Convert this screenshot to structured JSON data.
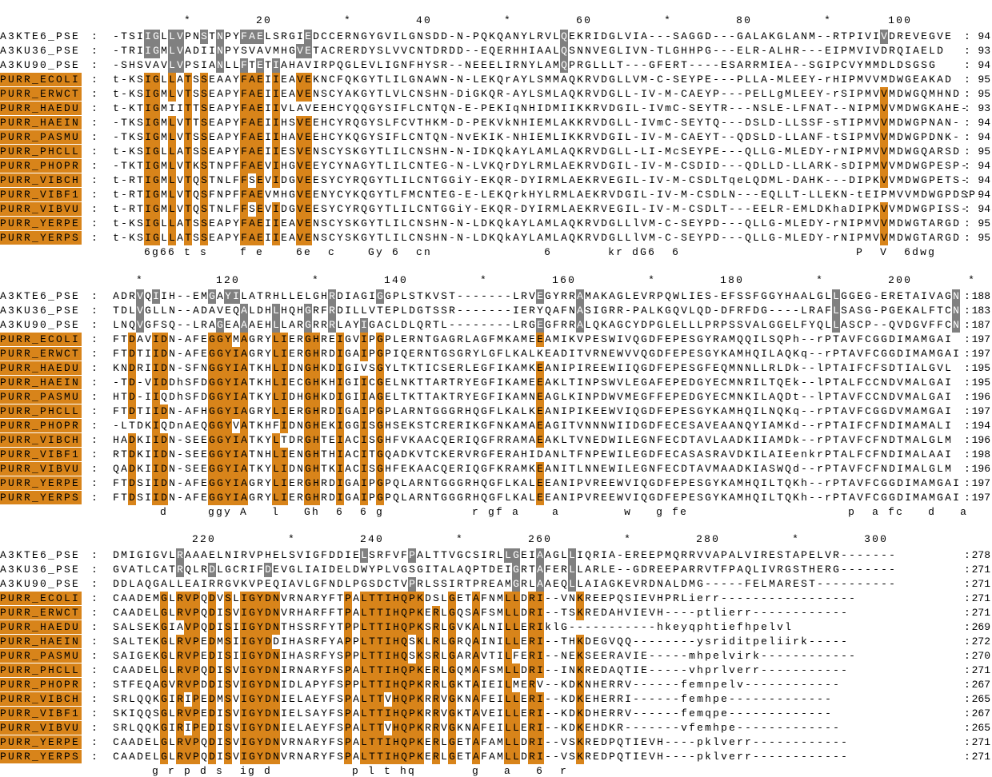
{
  "blocks": [
    {
      "ruler": "         *        20         *        40         *        60         *        80         *       100",
      "rows": [
        {
          "name": "A3KTE6_PSE",
          "seq": "-TSIIGLLVPNSTNPYFAELSRGIEDCCERNGYGVILGNSDD-N-PQKQANYLRVLQEKRIDGLVIA---SAGGD---GALAKGLANM--RTPIVIVDREVEGVE",
          "end": "94"
        },
        {
          "name": "A3KU36_PSE",
          "seq": "-TRIIGMLVADIINPYSVAVMHGVETACRERDYSLVVCNTDRDD--EQERHHIAALQSNNVEGLIVN-TLGHHPG---ELR-ALHR---EIPMVIVDRQIAELD",
          "end": "93"
        },
        {
          "name": "A3KU90_PSE",
          "seq": "-SHSVAVLVPSIANLLFTETIAHAVIRPQGLEVLIGNFHYSR--NEEELIRNYLAMQPRGLLLT---GFERT----ESARRMIEA--SGIPCVYMMDLDSGSG",
          "end": "94"
        },
        {
          "name": "PURR_ECOLI",
          "seq": "t-KSIGLLATSSEAAYFAEIIEAVEKNCFQKGYTLILGNAWN-N-LEKQrAYLSMMAQKRVDGLLVM-C-SEYPE---PLLA-MLEEY-rHIPMVVMDWGEAKAD",
          "end": "95"
        },
        {
          "name": "PURR_ERWCT",
          "seq": "t-KSIGMLVTSSEAPYFAEIIEAVENSCYAKGYTLVLCNSHN-DiGKQR-AYLSMLAQKRVDGLL-IV-M-CAEYP---PELLgMLEEY-rSIPMVVMDWGQMHND",
          "end": "95"
        },
        {
          "name": "PURR_HAEDU",
          "seq": "t-KTIGMIITTSEAPYFAEIIVLAVEEHCYQQGYSIFLCNTQN-E-PEKIqNHIDMIIKKRVDGIL-IVmC-SEYTR---NSLE-LFNAT--NIPMVVMDWGKAHE-",
          "end": "93"
        },
        {
          "name": "PURR_HAEIN",
          "seq": "-TKSIGMLVTTSEAPYFAEIIHSVEEHCYRQGYSLFCVTHKM-D-PEKVkNHIEMLAKKRVDGLL-IVmC-SEYTQ---DSLD-LLSSF-sTIPMVVMDWGPNAN-",
          "end": "94"
        },
        {
          "name": "PURR_PASMU",
          "seq": "-TKSIGMLVTSSEAPYFAEIIHAVEEHCYKQGYSIFLCNTQN-NvEKIK-NHIEMLIKKRVDGIL-IV-M-CAEYT--QDSLD-LLANF-tSIPMVVMDWGPDNK-",
          "end": "94"
        },
        {
          "name": "PURR_PHCLL",
          "seq": "t-KSIGLLATSSEAPYFAEIIESVENSCYSKGYTLILCNSHN-N-IDKQkAYLAMLAQKRVDGLL-LI-McSEYPE---QLLG-MLEDY-rNIPMVVMDWGQARSD",
          "end": "95"
        },
        {
          "name": "PURR_PHOPR",
          "seq": "-TKTIGMLVTKSTNPFFAEVIHGVEEYCYNAGYTLILCNTEG-N-LVKQrDYLRMLAEKRVDGIL-IV-M-CSDID---QDLLD-LLARK-sDIPMVVMDWGPESP-",
          "end": "94"
        },
        {
          "name": "PURR_VIBCH",
          "seq": "t-RTIGMLVTQSTNLFFSEVIDGVEESYCYRQGYTLILCNTGGiY-EKQR-DYIRMLAEKRVEGIL-IV-M-CSDLTqeLQDML-DAHK---DIPKVVMDWGPETS-",
          "end": "94"
        },
        {
          "name": "PURR_VIBF1",
          "seq": "t-RTIGMLVTQSFNPFFAEVMHGVEENYCYKQGYTLFMCNTEG-E-LEKQrkHYLRMLAEKRVDGIL-IV-M-CSDLN---EQLLT-LLEKN-tEIPMVVMDWGPDSP-",
          "end": "94"
        },
        {
          "name": "PURR_VIBVU",
          "seq": "t-RTIGMLVTQSTNLFFSEVIDGVEESYCYRQGYTLILCNTGGiY-EKQR-DYIRMLAEKRVEGIL-IV-M-CSDLT---EELR-EMLDKhaDIPKVVMDWGPISS-",
          "end": "94"
        },
        {
          "name": "PURR_YERPE",
          "seq": "t-KSIGLLATSSEAPYFAEIIEAVENSCYSKGYTLILCNSHN-N-LDKQkAYLAMLAQKRVDGLLlVM-C-SEYPD---QLLG-MLEDY-rNIPMVVMDWGTARGD",
          "end": "95"
        },
        {
          "name": "PURR_YERPS",
          "seq": "t-KSIGLLATSSEAPYFAEIIEAVENSCYSKGYTLILCNSHN-N-LDKQkAYLAMLAQKRVDGLLlVM-C-SEYPD---QLLG-MLEDY-rNIPMVVMDWGTARGD",
          "end": "95"
        }
      ],
      "consensus": "    6g66 t s    f e    6e  c    Gy 6  cn              6       kr dG6  6                      P  V  6dwg"
    },
    {
      "ruler": "   *         120         *        140         *        160         *        180         *        200       *",
      "rows": [
        {
          "name": "A3KTE6_PSE",
          "seq": "ADRVQIIH--EMGAYILATRHLLELGHRDIAGIGGPLSTKVST-------LRVEGYRRAMAKAGLEVRPQWLIES-EFSSFGGYHAALGLLGGEG-ERETAIVAGN",
          "end": "188"
        },
        {
          "name": "A3KU36_PSE",
          "seq": "TDLVGLLN--ADAVEQALDHLHQHGRFRDILLVTEPLDGTSSR-------IERYQAFNASIGRR-PALKGQVLQD-DFRFDG----LRAFLSASG-PGEKALFTCN",
          "end": "183"
        },
        {
          "name": "A3KU90_PSE",
          "seq": "LNQVGFSQ--LRAGEAAAEHLLARGRRRLAYIGACLDLQRTL--------LRGEGFRRALQKAGCYDPGLELLLPRPSSVALGGELFYQLLASCP--QVDGVFFCN",
          "end": "187"
        },
        {
          "name": "PURR_ECOLI",
          "seq": "FTDAVIDN-AFEGGYMAGRYLIERGHREIGVIPGPLERNTGAGRLAGFMKAMEEAMIKVPESWIVQGDFEPESGYRAMQQILSQPh--rPTAVFCGGDIMAMGAI",
          "end": "197"
        },
        {
          "name": "PURR_ERWCT",
          "seq": "FTDTIIDN-AFEGGYIAGRYLIERGHRDIGAIPGPIQERNTGSGRYLGFLKALKEADITVRNEWVVQGDFEPESGYKAMHQILAQKq--rPTAVFCGGDIMAMGAI",
          "end": "197"
        },
        {
          "name": "PURR_HAEDU",
          "seq": "KNDRIIDN-SFNGGYIATKHLIDNGHKDIGIVSGYLTKTICSERLEGFIKAMKEANIPIREEWIIQGDFEPESGFEQMNNLLRLDk--lPTAIFCFSDTIALGVL",
          "end": "195"
        },
        {
          "name": "PURR_HAEIN",
          "seq": "-TD-VIDDhSFDGGYIATKHLIECGHKHIGIICGELNKTTARTRYEGFIKAMEEAKLTINPSWVLEGAFEPEDGYECMNRILTQEk--lPTALFCCNDVMALGAI",
          "end": "195"
        },
        {
          "name": "PURR_PASMU",
          "seq": "HTD-IIQDhSFDGGYIATKYLIDHGHKDIGIIAGELTKTTAKTRYEGFIKAMNEAGLKINPDWVMEGFFEPEDGYECMNKILAQDt--lPTAVFCCNDVMALGAI",
          "end": "196"
        },
        {
          "name": "PURR_PHCLL",
          "seq": "FTDTIIDN-AFHGGYIAGRYLIERGHRDIGAIPGPLARNTGGGRHQGFLKALKEANIPIKEEWVIQGDFEPESGYKAMHQILNQKq--rPTAVFCGGDVMAMGAI",
          "end": "197"
        },
        {
          "name": "PURR_PHOPR",
          "seq": "-LTDKIQDnAEQGGYVATKHFIDNGHEKIGGISGHSEKSTCRERIKGFNKAMAEAGITVNNNWIIDGDFECESAVEAANQYIAMKd--rPTAIFCFNDIMAMALI",
          "end": "194"
        },
        {
          "name": "PURR_VIBCH",
          "seq": "HADKIIDN-SEEGGYIATKYLTDRGHTEIACISGHFVKAACQERIQGFRRAMAEAKLTVNEDWILEGNFECDTAVLAADKIIAMDk--rPTAVFCFNDTMALGLM",
          "end": "196"
        },
        {
          "name": "PURR_VIBF1",
          "seq": "RTDKIIDN-SEEGGYIATNHLIENGHTHIACITGQADKVTCKERVRGFERAHIDANLTFNPEWILEGDFECASASRAVDKILAIEenkrPTALFCFNDIMALAAI",
          "end": "198"
        },
        {
          "name": "PURR_VIBVU",
          "seq": "QADKIIDN-SEEGGYIATKYLIDNGHTKIACISGHFEKAACQERIQGFKRAMKEANITLNNEWILEGNFECDTAVMAADKIASWQd--rPTAVFCFNDIMALGLM",
          "end": "196"
        },
        {
          "name": "PURR_YERPE",
          "seq": "FTDSIIDN-AFEGGYIAGRYLIERGHRDIGAIPGPQLARNTGGGRHQGFLKALEEANIPVREEWVIQGDFEPESGYKAMHQILTQKh--rPTAVFCGGDIMAMGAI",
          "end": "197"
        },
        {
          "name": "PURR_YERPS",
          "seq": "FTDSIIDN-AFEGGYIAGRYLIERGHRDIGAIPGPQLARNTGGGRHQGFLKALEEANIPVREEWVIQGDFEPESGYKAMHQILTQKh--rPTAVFCGGDIMAMGAI",
          "end": "197"
        }
      ],
      "consensus": "      d     ggy A   l   Gh  6  6 g           r gf a    a        w   g fe                    p  a fc   d   a"
    },
    {
      "ruler": "          220         *        240         *        260         *        280         *        300",
      "rows": [
        {
          "name": "A3KTE6_PSE",
          "seq": "DMIGIGVLRAAAELNIRVPHELSVIGFDDIELSRFVFPALTTVGCSIRLLGEIAAGLLIQRIA-EREEPMQRRVVAPALVIRESTAPELVR-------",
          "end": "278"
        },
        {
          "name": "A3KU36_PSE",
          "seq": "GVATLCATRQLRDLGCRIFDEVGLIAIDELDWYPLVGSGITALAQPTDEIGRTAFERLLARLE--GDREEPARRVTFPAQLIVRGSTHERG-------",
          "end": "271"
        },
        {
          "name": "A3KU90_PSE",
          "seq": "DDLAQGALLEAIRRGVKVPEQIAVLGFNDLPGSDCTVPRLSSIRTPREAMGRLAAEQLLAIAGKEVRDNALDMG-----FELMAREST----------",
          "end": "271"
        },
        {
          "name": "PURR_ECOLI",
          "seq": "CAADEMGLRVPQDVSLIGYDNVRNARYFTPALTTIHQPKDSLGETAFNMLLDRI--VNKREEPQSIEVHPRLierr-----------------",
          "end": "271"
        },
        {
          "name": "PURR_ERWCT",
          "seq": "CAADELGLRVPQDISVIGYDNVRHARFFTPALTTIHQPKERLGQSAFSMLLDRI--TSKREDAHVIEVH----ptlierr------------",
          "end": "271"
        },
        {
          "name": "PURR_HAEDU",
          "seq": "SALSEKGIAVPQDISIIGYDNTHSSRFYTPPLTTIHQPKSRLGVKALNILLERIklG-----------hkeyqphtiefhpelvl",
          "end": "269"
        },
        {
          "name": "PURR_HAEIN",
          "seq": "SALTEKGLRVPEDMSIIGYDDIHASRFYAPPLTTIHQSKLRLGRQAINILLERI--THKDEGVQQ--------ysriditpeliirk-----",
          "end": "272"
        },
        {
          "name": "PURR_PASMU",
          "seq": "SAIGEKGLRVPEDISIIGYDNIHASRFYSPPLTTIHQSKSRLGARAVTILFERI--NEKSEERAVIE-----mhpelvirk------------",
          "end": "270"
        },
        {
          "name": "PURR_PHCLL",
          "seq": "CAADELGLRVPQDISVIGYDNIRNARYFSPALTTIHQPKERLGQMAFSMLLDRI--INKREDAQTIE-----vhprlverr-----------",
          "end": "271"
        },
        {
          "name": "PURR_PHOPR",
          "seq": "STFEQAGVRVPDDISVIGYDNIDLAPYFSPPLTTIHQPKRRLGKTAIEILMERV--KDKNHERRV------femnpelv------------",
          "end": "267"
        },
        {
          "name": "PURR_VIBCH",
          "seq": "SRLQQKGIRIPEDMSVIGYDNIELAEYFSPALTTVHQPKRRVGKNAFEILLERI--KDKEHERRI------femhpe-------------",
          "end": "265"
        },
        {
          "name": "PURR_VIBF1",
          "seq": "SKIQQSGLRVPEDISVIGYDNIELSAYFSPALTTIHQPKRRVGKTAVEILLERI--KDKDHERRV------femqpe-------------",
          "end": "267"
        },
        {
          "name": "PURR_VIBVU",
          "seq": "SRLQQKGIRIPEDISVIGYDNIELAEYFSPALTTVHQPKRRVGKNAFEILLERI--KDKEHDKR-------vfemhpe-------------",
          "end": "265"
        },
        {
          "name": "PURR_YERPE",
          "seq": "CAADELGLRVPQDISVIGYDNVRNARYFSPALTTIHQPKERLGETAFAMLLDRI--VSKREDPQTIEVH----pklverr------------",
          "end": "271"
        },
        {
          "name": "PURR_YERPS",
          "seq": "CAADELGLRVPQDISVIGYDNVRNARYFSPALTTIHQPKERLGETAFAMLLDRI--VSKREDPQTIEVH----pklverr------------",
          "end": "271"
        }
      ],
      "consensus": "     g r p d s  ig d          p l t hq       g   a   6  r"
    }
  ]
}
